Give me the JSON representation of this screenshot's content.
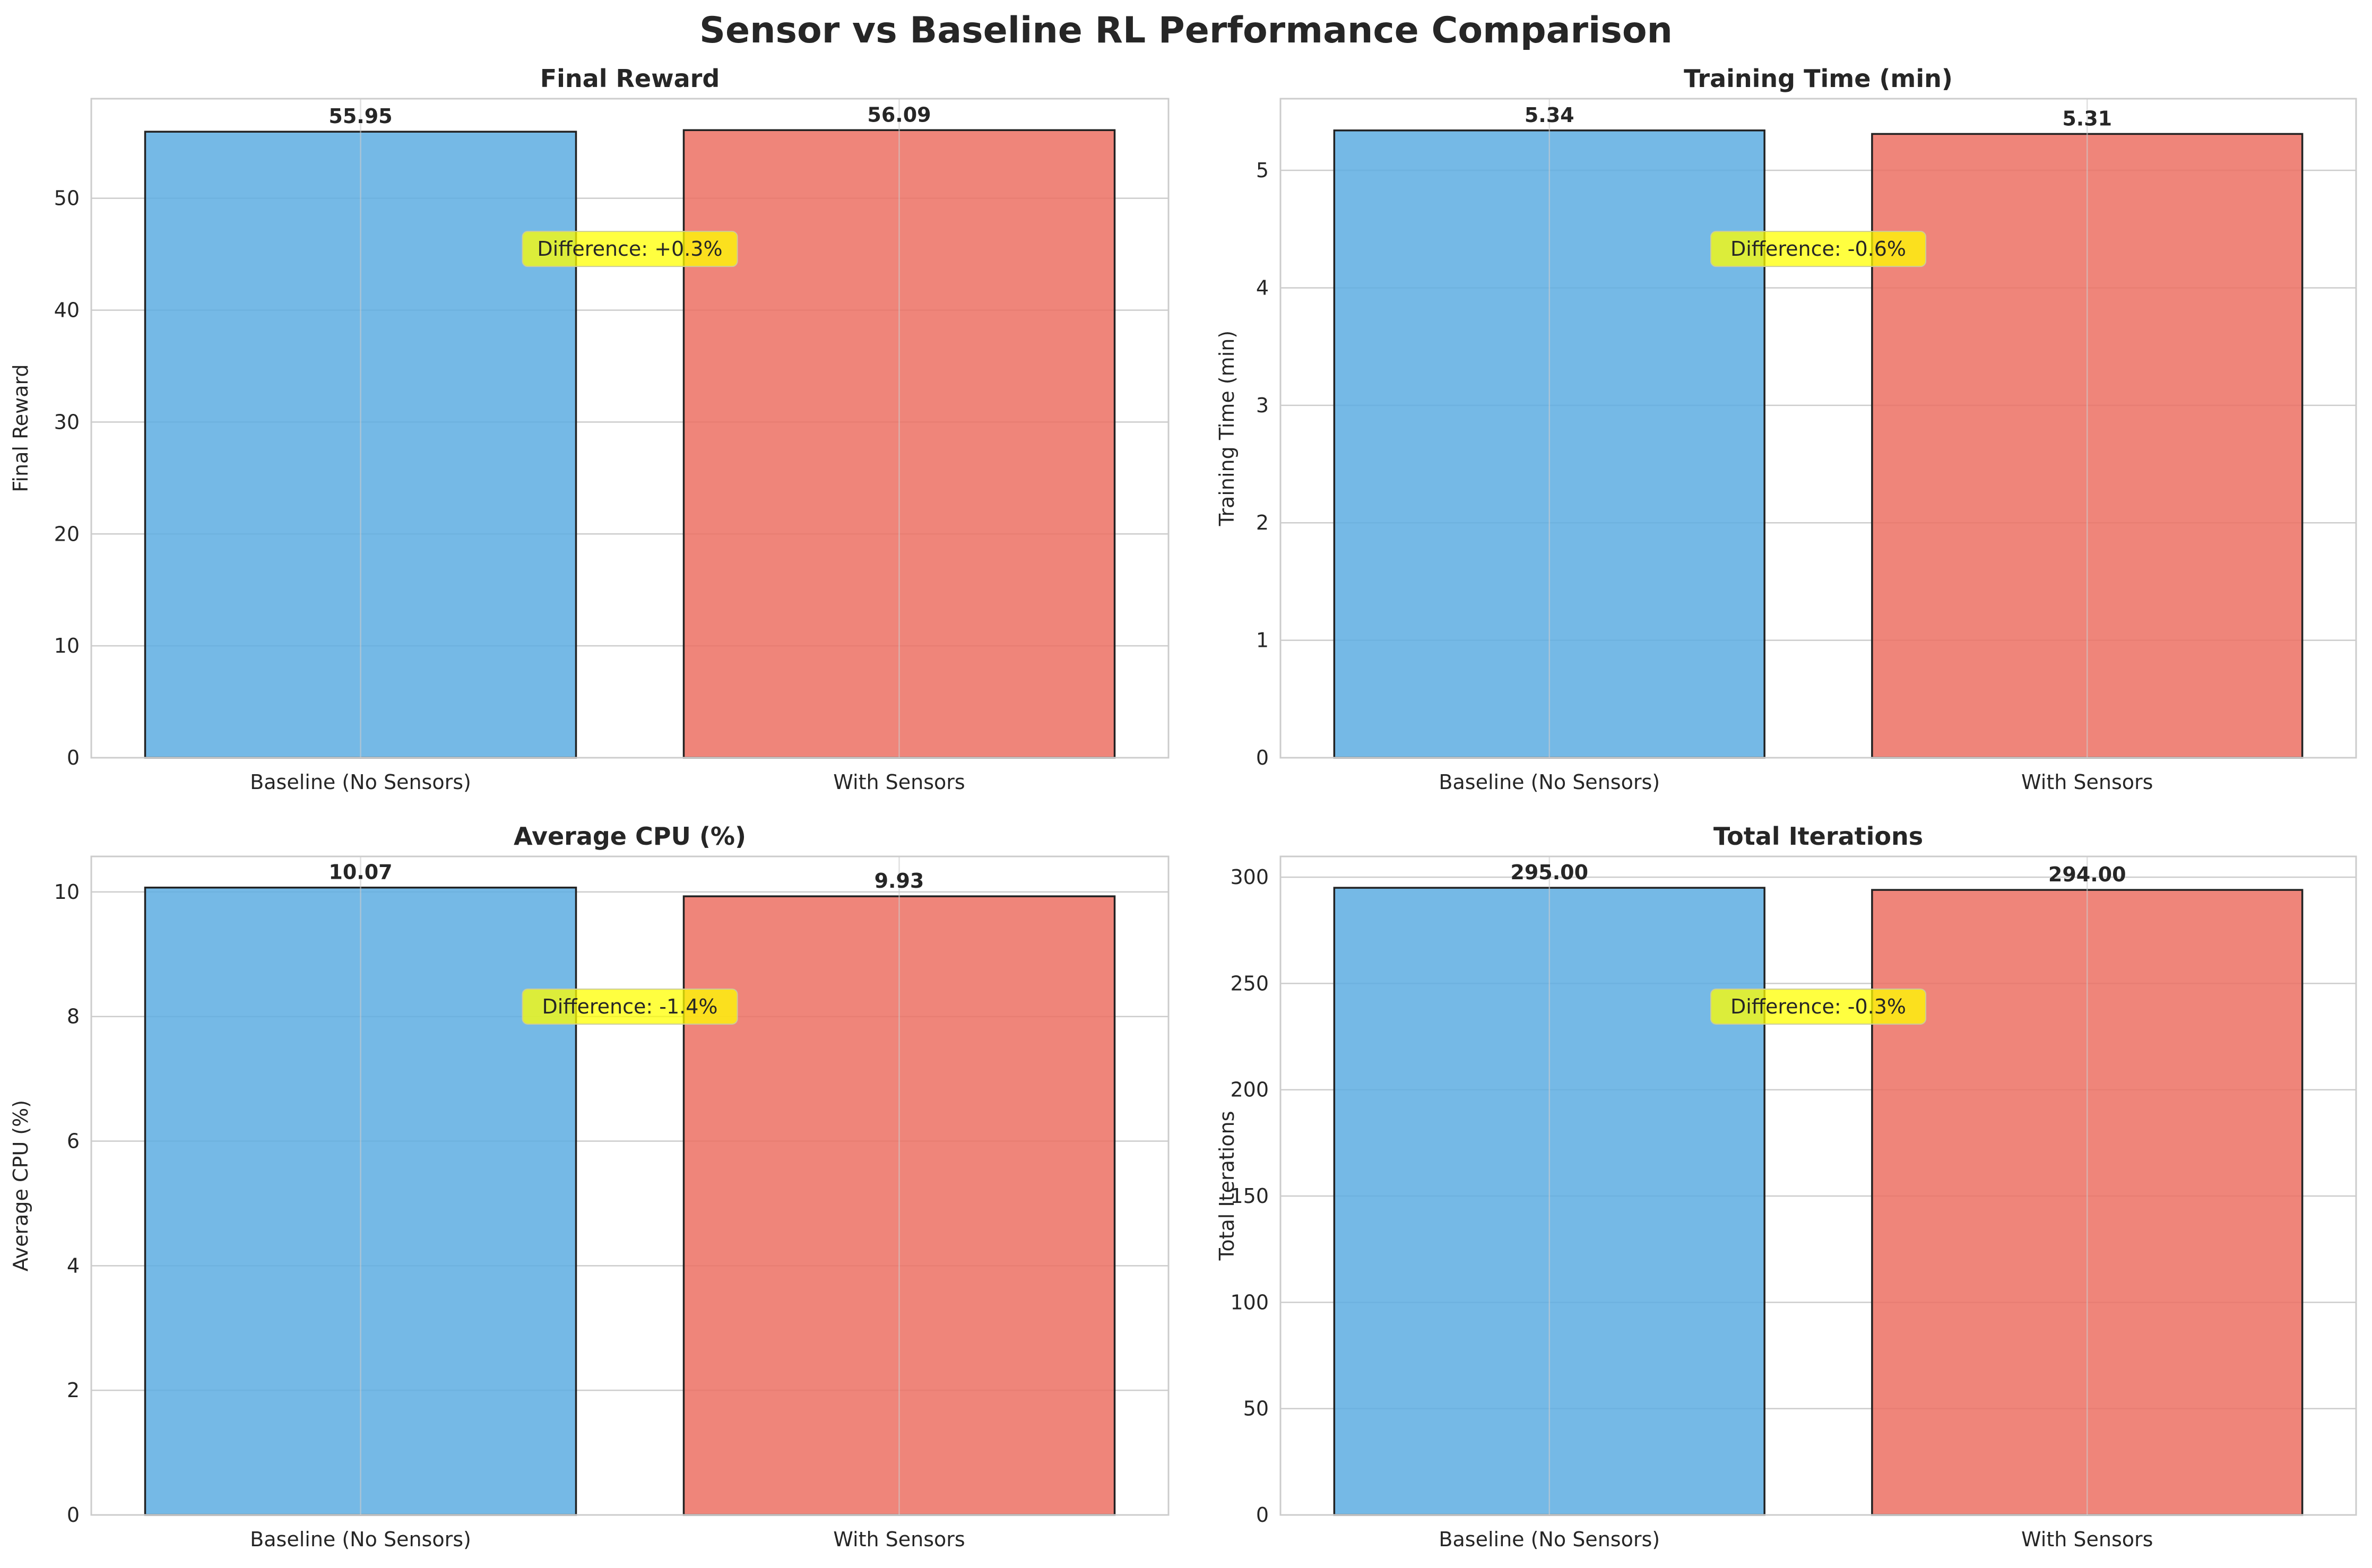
{
  "figure_title": "Sensor vs Baseline RL Performance Comparison",
  "colors": {
    "baseline": "#5DADE2",
    "sensors": "#EC7063",
    "annotation": "#FFFF00"
  },
  "chart_data": [
    {
      "type": "bar",
      "title": "Final Reward",
      "ylabel": "Final Reward",
      "xlabel": "",
      "categories": [
        "Baseline (No Sensors)",
        "With Sensors"
      ],
      "values": [
        55.95,
        56.09
      ],
      "value_labels": [
        "55.95",
        "56.09"
      ],
      "ylim": [
        0,
        58.9
      ],
      "yticks": [
        0,
        10,
        20,
        30,
        40,
        50
      ],
      "annotation": "Difference: +0.3%",
      "grid": true
    },
    {
      "type": "bar",
      "title": "Training Time (min)",
      "ylabel": "Training Time (min)",
      "xlabel": "",
      "categories": [
        "Baseline (No Sensors)",
        "With Sensors"
      ],
      "values": [
        5.34,
        5.31
      ],
      "value_labels": [
        "5.34",
        "5.31"
      ],
      "ylim": [
        0,
        5.61
      ],
      "yticks": [
        0,
        1,
        2,
        3,
        4,
        5
      ],
      "annotation": "Difference: -0.6%",
      "grid": true
    },
    {
      "type": "bar",
      "title": "Average CPU (%)",
      "ylabel": "Average CPU (%)",
      "xlabel": "",
      "categories": [
        "Baseline (No Sensors)",
        "With Sensors"
      ],
      "values": [
        10.07,
        9.93
      ],
      "value_labels": [
        "10.07",
        "9.93"
      ],
      "ylim": [
        0,
        10.57
      ],
      "yticks": [
        0,
        2,
        4,
        6,
        8,
        10
      ],
      "annotation": "Difference: -1.4%",
      "grid": true
    },
    {
      "type": "bar",
      "title": "Total Iterations",
      "ylabel": "Total Iterations",
      "xlabel": "",
      "categories": [
        "Baseline (No Sensors)",
        "With Sensors"
      ],
      "values": [
        295,
        294
      ],
      "value_labels": [
        "295.00",
        "294.00"
      ],
      "ylim": [
        0,
        309.75
      ],
      "yticks": [
        0,
        50,
        100,
        150,
        200,
        250,
        300
      ],
      "annotation": "Difference: -0.3%",
      "grid": true
    }
  ]
}
